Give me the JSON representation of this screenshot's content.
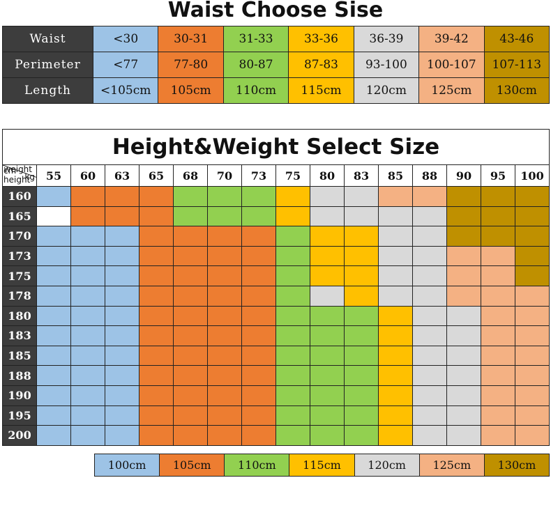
{
  "colors": {
    "blue": "#9dc3e6",
    "orange": "#ed7d31",
    "green": "#92d050",
    "yellow": "#ffc000",
    "grey": "#d9d9d9",
    "peach": "#f4b183",
    "olive": "#bf9000",
    "header_dark": "#3d3d3d"
  },
  "waist_chart": {
    "title": "Waist Choose Sise",
    "rows": [
      {
        "label": "Waist",
        "cells": [
          "<30",
          "30-31",
          "31-33",
          "33-36",
          "36-39",
          "39-42",
          "43-46"
        ]
      },
      {
        "label": "Perimeter",
        "cells": [
          "<77",
          "77-80",
          "80-87",
          "87-83",
          "93-100",
          "100-107",
          "107-113"
        ]
      },
      {
        "label": "Length",
        "cells": [
          "<105cm",
          "105cm",
          "110cm",
          "115cm",
          "120cm",
          "125cm",
          "130cm"
        ]
      }
    ],
    "column_colors": [
      "blue",
      "orange",
      "green",
      "yellow",
      "grey",
      "peach",
      "olive"
    ]
  },
  "hw_chart": {
    "title": "Height&Weight Select Size",
    "corner": {
      "weight": "weight",
      "kg": "kg",
      "cm": "cm",
      "height": "height"
    },
    "weights": [
      "55",
      "60",
      "63",
      "65",
      "68",
      "70",
      "73",
      "75",
      "80",
      "83",
      "85",
      "88",
      "90",
      "95",
      "100"
    ],
    "rows": [
      {
        "height": "160",
        "cells": [
          "blue",
          "orange",
          "orange",
          "orange",
          "green",
          "green",
          "green",
          "yellow",
          "grey",
          "grey",
          "peach",
          "peach",
          "olive",
          "olive",
          "olive"
        ]
      },
      {
        "height": "165",
        "cells": [
          "white",
          "orange",
          "orange",
          "orange",
          "green",
          "green",
          "green",
          "yellow",
          "grey",
          "grey",
          "grey",
          "grey",
          "olive",
          "olive",
          "olive"
        ]
      },
      {
        "height": "170",
        "cells": [
          "blue",
          "blue",
          "blue",
          "orange",
          "orange",
          "orange",
          "orange",
          "green",
          "yellow",
          "yellow",
          "grey",
          "grey",
          "olive",
          "olive",
          "olive"
        ]
      },
      {
        "height": "173",
        "cells": [
          "blue",
          "blue",
          "blue",
          "orange",
          "orange",
          "orange",
          "orange",
          "green",
          "yellow",
          "yellow",
          "grey",
          "grey",
          "peach",
          "peach",
          "olive"
        ]
      },
      {
        "height": "175",
        "cells": [
          "blue",
          "blue",
          "blue",
          "orange",
          "orange",
          "orange",
          "orange",
          "green",
          "yellow",
          "yellow",
          "grey",
          "grey",
          "peach",
          "peach",
          "olive"
        ]
      },
      {
        "height": "178",
        "cells": [
          "blue",
          "blue",
          "blue",
          "orange",
          "orange",
          "orange",
          "orange",
          "green",
          "grey",
          "yellow",
          "grey",
          "grey",
          "peach",
          "peach",
          "peach"
        ]
      },
      {
        "height": "180",
        "cells": [
          "blue",
          "blue",
          "blue",
          "orange",
          "orange",
          "orange",
          "orange",
          "green",
          "green",
          "green",
          "yellow",
          "grey",
          "grey",
          "peach",
          "peach"
        ]
      },
      {
        "height": "183",
        "cells": [
          "blue",
          "blue",
          "blue",
          "orange",
          "orange",
          "orange",
          "orange",
          "green",
          "green",
          "green",
          "yellow",
          "grey",
          "grey",
          "peach",
          "peach"
        ]
      },
      {
        "height": "185",
        "cells": [
          "blue",
          "blue",
          "blue",
          "orange",
          "orange",
          "orange",
          "orange",
          "green",
          "green",
          "green",
          "yellow",
          "grey",
          "grey",
          "peach",
          "peach"
        ]
      },
      {
        "height": "188",
        "cells": [
          "blue",
          "blue",
          "blue",
          "orange",
          "orange",
          "orange",
          "orange",
          "green",
          "green",
          "green",
          "yellow",
          "grey",
          "grey",
          "peach",
          "peach"
        ]
      },
      {
        "height": "190",
        "cells": [
          "blue",
          "blue",
          "blue",
          "orange",
          "orange",
          "orange",
          "orange",
          "green",
          "green",
          "green",
          "yellow",
          "grey",
          "grey",
          "peach",
          "peach"
        ]
      },
      {
        "height": "195",
        "cells": [
          "blue",
          "blue",
          "blue",
          "orange",
          "orange",
          "orange",
          "orange",
          "green",
          "green",
          "green",
          "yellow",
          "grey",
          "grey",
          "peach",
          "peach"
        ]
      },
      {
        "height": "200",
        "cells": [
          "blue",
          "blue",
          "blue",
          "orange",
          "orange",
          "orange",
          "orange",
          "green",
          "green",
          "green",
          "yellow",
          "grey",
          "grey",
          "peach",
          "peach"
        ]
      }
    ]
  },
  "length_legend": {
    "cells": [
      {
        "label": "100cm",
        "color": "blue"
      },
      {
        "label": "105cm",
        "color": "orange"
      },
      {
        "label": "110cm",
        "color": "green"
      },
      {
        "label": "115cm",
        "color": "yellow"
      },
      {
        "label": "120cm",
        "color": "grey"
      },
      {
        "label": "125cm",
        "color": "peach"
      },
      {
        "label": "130cm",
        "color": "olive"
      }
    ]
  }
}
